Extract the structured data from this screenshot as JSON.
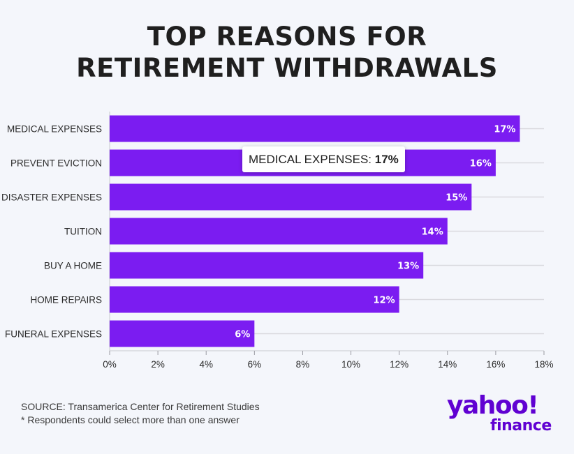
{
  "title_line1": "TOP REASONS FOR",
  "title_line2": "RETIREMENT WITHDRAWALS",
  "tooltip": {
    "label": "MEDICAL EXPENSES: ",
    "value": "17%"
  },
  "footer": {
    "source": "SOURCE: Transamerica Center for Retirement Studies",
    "note": "* Respondents could select more than one answer"
  },
  "logo": {
    "word1": "yahoo!",
    "word2": "finance"
  },
  "colors": {
    "bar": "#7b1cf1",
    "grid": "#d9d9de",
    "brand": "#6001d2",
    "background": "#f4f6fb"
  },
  "chart_data": {
    "type": "bar",
    "orientation": "horizontal",
    "categories": [
      "MEDICAL EXPENSES",
      "PREVENT EVICTION",
      "DISASTER EXPENSES",
      "TUITION",
      "BUY A HOME",
      "HOME REPAIRS",
      "FUNERAL EXPENSES"
    ],
    "values": [
      17,
      16,
      15,
      14,
      13,
      12,
      6
    ],
    "data_labels": [
      "17%",
      "16%",
      "15%",
      "14%",
      "13%",
      "12%",
      "6%"
    ],
    "xlim": [
      0,
      18
    ],
    "ticks": [
      0,
      2,
      4,
      6,
      8,
      10,
      12,
      14,
      16,
      18
    ],
    "tick_labels": [
      "0%",
      "2%",
      "4%",
      "6%",
      "8%",
      "10%",
      "12%",
      "14%",
      "16%",
      "18%"
    ],
    "grid": true,
    "legend": "none"
  }
}
